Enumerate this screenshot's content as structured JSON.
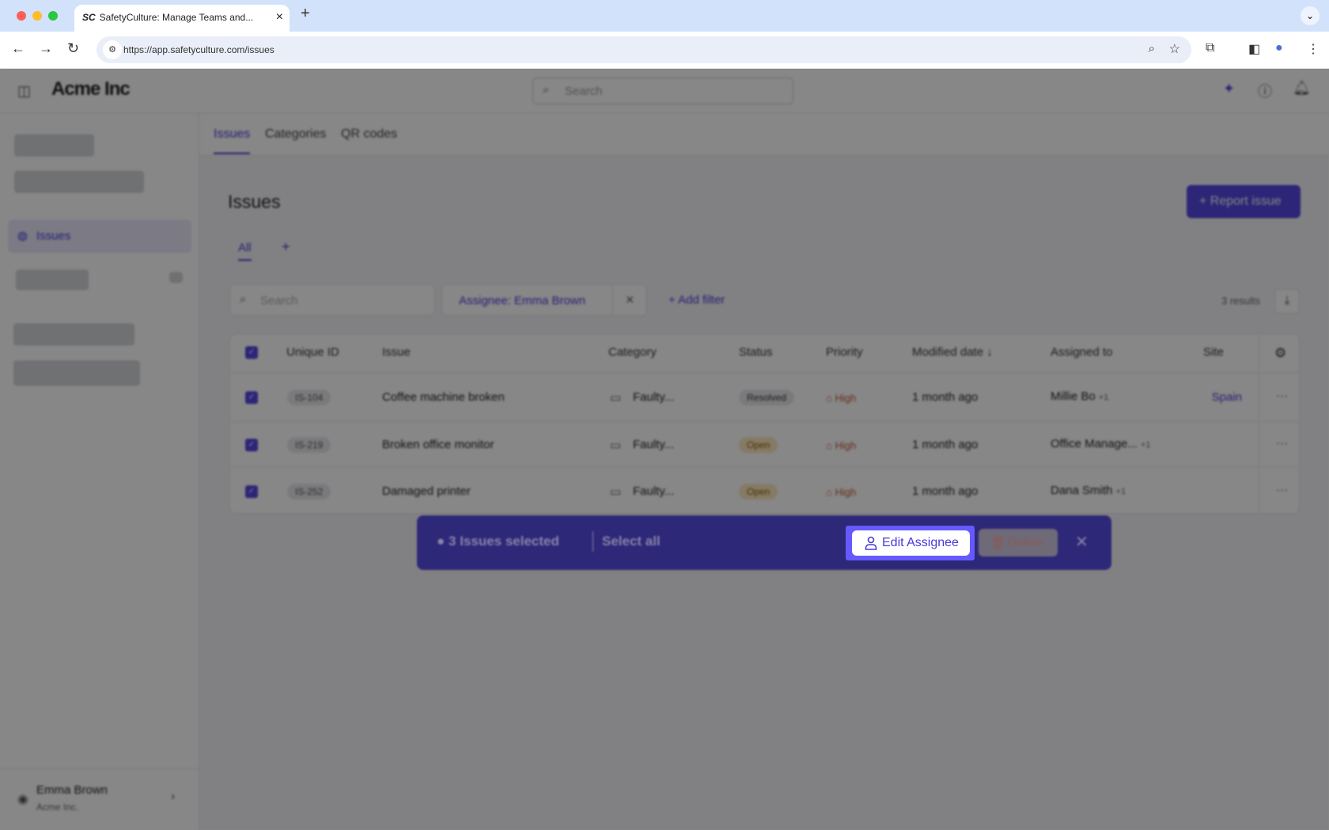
{
  "browser": {
    "tab_title": "SafetyCulture: Manage Teams and...",
    "tab_favicon": "SC",
    "url": "https://app.safetyculture.com/issues"
  },
  "app": {
    "org_name": "Acme Inc",
    "search_placeholder": "Search"
  },
  "sidebar": {
    "active_item": "Issues",
    "user_name": "Emma Brown",
    "user_org": "Acme Inc."
  },
  "subtabs": [
    "Issues",
    "Categories",
    "QR codes"
  ],
  "main": {
    "title": "Issues",
    "report_button": "+ Report issue",
    "views": [
      "All",
      "+"
    ],
    "search_placeholder": "Search",
    "filter_chip": "Assignee: Emma Brown",
    "filter_clear": "×",
    "add_filter": "+ Add filter",
    "results": "3 results"
  },
  "table": {
    "headers": [
      "Unique ID",
      "Issue",
      "Category",
      "Status",
      "Priority",
      "Modified date ↓",
      "Assigned to",
      "Site"
    ],
    "rows": [
      {
        "id": "IS-104",
        "issue": "Coffee machine broken",
        "category": "Faulty...",
        "status": "Resolved",
        "priority": "High",
        "modified": "1 month ago",
        "assigned": "Millie Bo",
        "extra": "+1",
        "site": "Spain"
      },
      {
        "id": "IS-219",
        "issue": "Broken office monitor",
        "category": "Faulty...",
        "status": "Open",
        "priority": "High",
        "modified": "1 month ago",
        "assigned": "Office Manage...",
        "extra": "+1",
        "site": ""
      },
      {
        "id": "IS-252",
        "issue": "Damaged printer",
        "category": "Faulty...",
        "status": "Open",
        "priority": "High",
        "modified": "1 month ago",
        "assigned": "Dana Smith",
        "extra": "+1",
        "site": ""
      }
    ]
  },
  "bulk_bar": {
    "selected": "3 Issues selected",
    "select_all": "Select all",
    "edit_assignee": "Edit Assignee",
    "delete": "Delete",
    "close": "✕"
  },
  "colors": {
    "accent": "#5546e0",
    "highlight": "#6559ff"
  }
}
